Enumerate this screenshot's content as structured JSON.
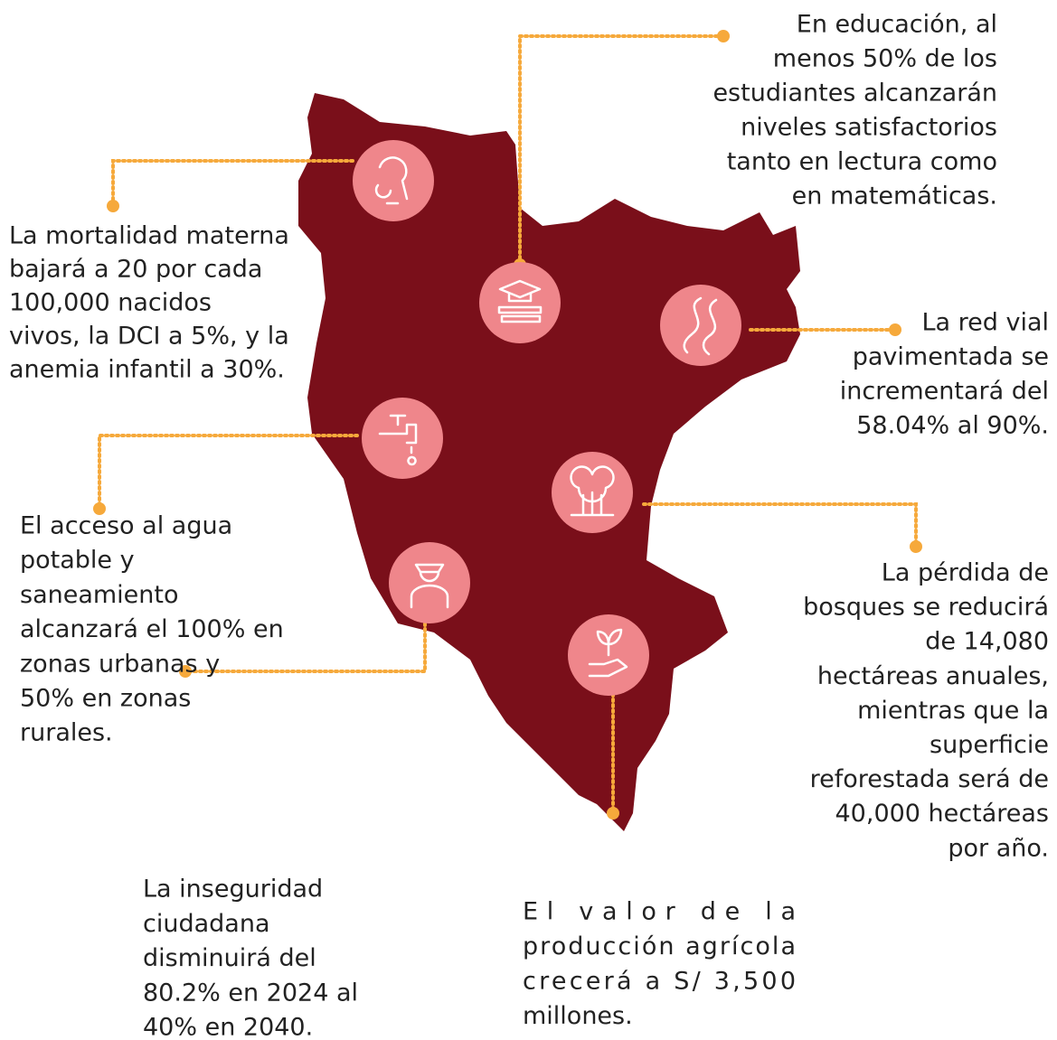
{
  "blocks": [
    {
      "lines": [
        "La mortalidad materna",
        "bajará a 20 por cada",
        "100,000 nacidos",
        "vivos, la DCI a 5%, y la",
        "anemia infantil a 30%."
      ]
    },
    {
      "lines": [
        "En educación, al",
        "menos 50% de los",
        "estudiantes alcanzarán",
        "niveles satisfactorios",
        "tanto en lectura como",
        "en matemáticas."
      ]
    },
    {
      "lines": [
        "La red vial",
        "pavimentada se",
        "incrementará del",
        "58.04% al 90%."
      ]
    },
    {
      "lines": [
        "El acceso al agua",
        "potable y",
        "saneamiento",
        "alcanzará el 100% en",
        "zonas urbanas y",
        "50% en zonas",
        "rurales."
      ]
    },
    {
      "lines": [
        "La pérdida de",
        "bosques se reducirá",
        "de 14,080",
        "hectáreas anuales,",
        "mientras que la",
        "superficie",
        "reforestada será de",
        "40,000 hectáreas",
        "por año."
      ]
    },
    {
      "lines": [
        "La inseguridad",
        "ciudadana",
        "disminuirá del",
        "80.2% en 2024 al",
        "40% en 2040."
      ]
    },
    {
      "lines": [
        "El valor de la",
        "producción agrícola",
        "crecerá a S/ 3,500",
        "millones."
      ]
    }
  ]
}
